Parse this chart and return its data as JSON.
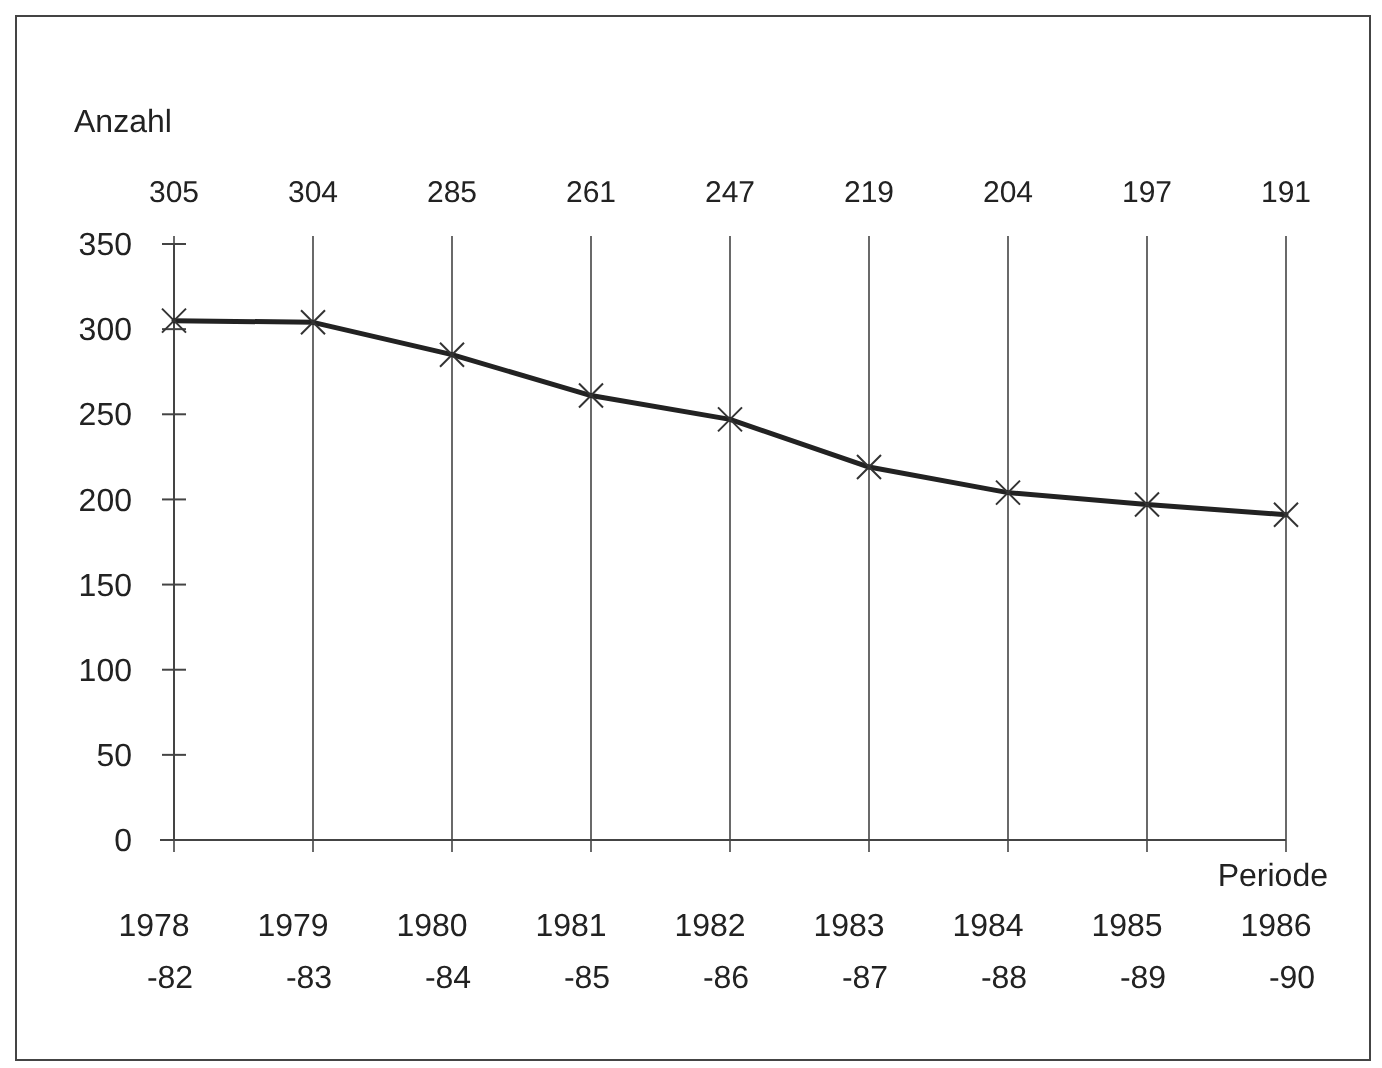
{
  "chart_data": {
    "type": "line",
    "ylabel": "Anzahl",
    "xlabel": "Periode",
    "categories": [
      "1978\n-82",
      "1979\n-83",
      "1980\n-84",
      "1981\n-85",
      "1982\n-86",
      "1983\n-87",
      "1984\n-88",
      "1985\n-89",
      "1986\n-90"
    ],
    "series": [
      {
        "color": "#222222",
        "values": [
          305,
          304,
          285,
          261,
          247,
          219,
          204,
          197,
          191
        ]
      }
    ],
    "ylim": [
      0,
      350
    ],
    "yticks": [
      0,
      50,
      100,
      150,
      200,
      250,
      300,
      350
    ],
    "grid": "x",
    "marker": "cross",
    "line_style": "solid",
    "data_labels": true
  }
}
